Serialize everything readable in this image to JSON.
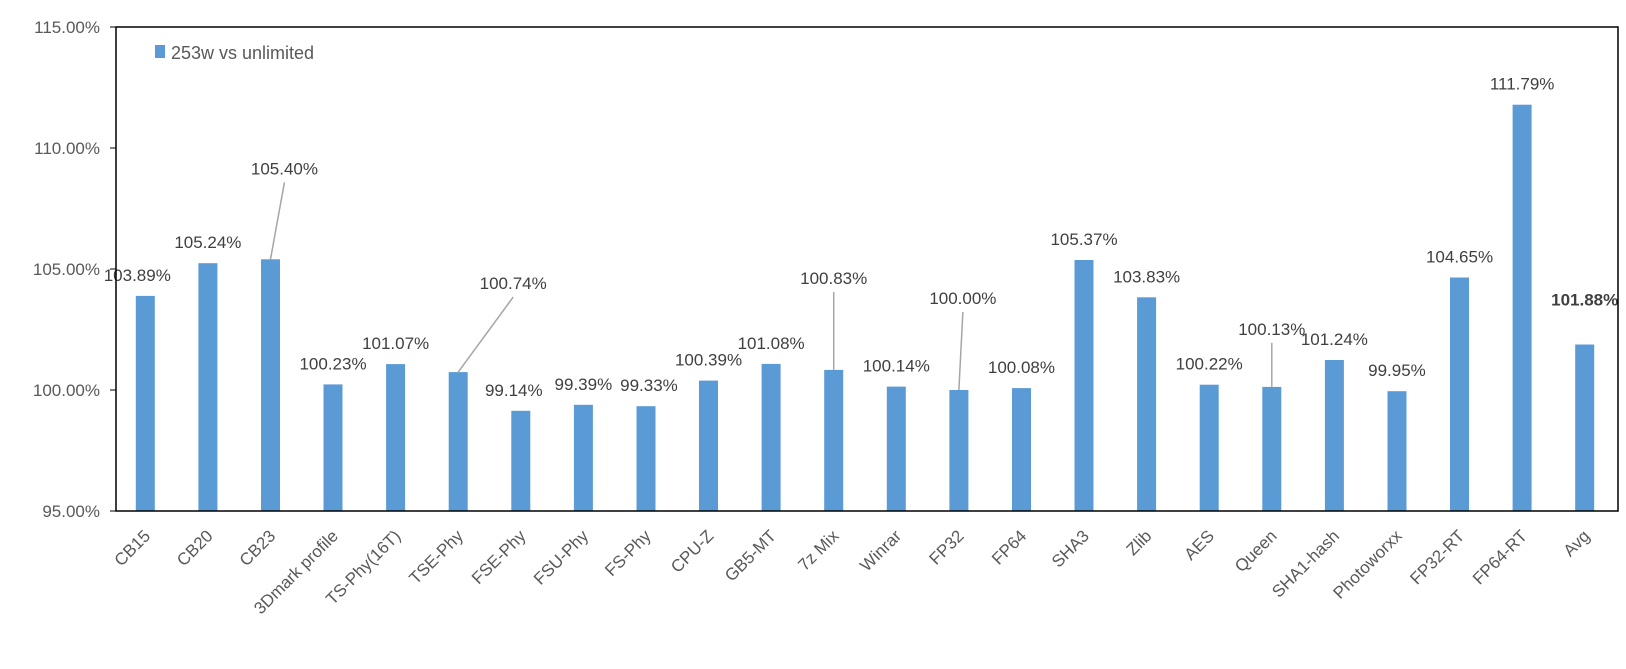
{
  "chart_data": {
    "type": "bar",
    "categories": [
      "CB15",
      "CB20",
      "CB23",
      "3Dmark profile",
      "TS-Phy(16T)",
      "TSE-Phy",
      "FSE-Phy",
      "FSU-Phy",
      "FS-Phy",
      "CPU-Z",
      "GB5-MT",
      "7z Mix",
      "Winrar",
      "FP32",
      "FP64",
      "SHA3",
      "Zlib",
      "AES",
      "Queen",
      "SHA1-hash",
      "Photoworxx",
      "FP32-RT",
      "FP64-RT",
      "Avg"
    ],
    "series": [
      {
        "name": "253w vs  unlimited",
        "values": [
          103.89,
          105.24,
          105.4,
          100.23,
          101.07,
          100.74,
          99.14,
          99.39,
          99.33,
          100.39,
          101.08,
          100.83,
          100.14,
          100.0,
          100.08,
          105.37,
          103.83,
          100.22,
          100.13,
          101.24,
          99.95,
          104.65,
          111.79,
          101.88
        ],
        "labels": [
          "103.89%",
          "105.24%",
          "105.40%",
          "100.23%",
          "101.07%",
          "100.74%",
          "99.14%",
          "99.39%",
          "99.33%",
          "100.39%",
          "101.08%",
          "100.83%",
          "100.14%",
          "100.00%",
          "100.08%",
          "105.37%",
          "103.83%",
          "100.22%",
          "100.13%",
          "101.24%",
          "99.95%",
          "104.65%",
          "111.79%",
          "101.88%"
        ],
        "color": "#5b9bd5"
      }
    ],
    "highlight": {
      "category": "Avg",
      "label_color": "#e00000"
    },
    "leader_lines": [
      "CB23",
      "TSE-Phy",
      "7z Mix",
      "FP32",
      "Queen"
    ],
    "title": "",
    "xlabel": "",
    "ylabel": "",
    "ylim": [
      95,
      115
    ],
    "yticks": [
      "95.00%",
      "100.00%",
      "105.00%",
      "110.00%",
      "115.00%"
    ],
    "grid": false,
    "legend": "top-left",
    "axis_color": "#000000"
  }
}
